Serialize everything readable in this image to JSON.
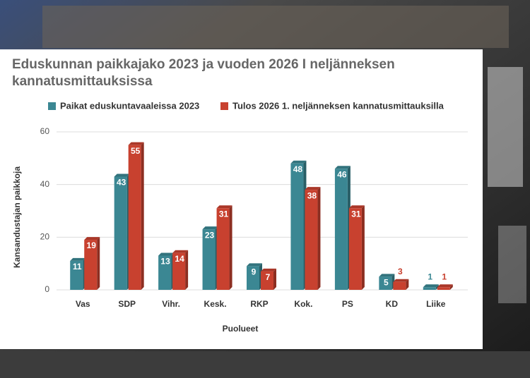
{
  "chart_data": {
    "type": "bar",
    "title": "Eduskunnan paikkajako 2023 ja vuoden 2026 I neljänneksen kannatusmittauksissa",
    "x_label": "Puolueet",
    "y_label": "Kansandustajan paikkoja",
    "categories": [
      "Vas",
      "SDP",
      "Vihr.",
      "Kesk.",
      "RKP",
      "Kok.",
      "PS",
      "KD",
      "Liike"
    ],
    "series": [
      {
        "name": "Paikat eduskuntavaaleissa 2023",
        "color": "#3b8793",
        "values": [
          11,
          43,
          13,
          23,
          9,
          48,
          46,
          5,
          1
        ]
      },
      {
        "name": "Tulos 2026 1. neljänneksen kannatusmittauksilla",
        "color": "#c8412f",
        "values": [
          19,
          55,
          14,
          31,
          7,
          38,
          31,
          3,
          1
        ]
      }
    ],
    "ylim": [
      0,
      60
    ],
    "yticks": [
      0,
      20,
      40,
      60
    ],
    "grid": true
  }
}
